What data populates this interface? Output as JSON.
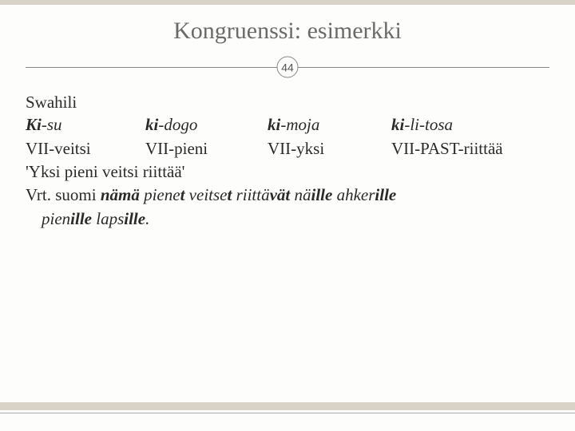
{
  "colors": {
    "background": "#fdfdfc",
    "title_text": "#6a6a6a",
    "body_text": "#2a2a2a",
    "rule": "#888",
    "accent_bar": "#d8d3c6"
  },
  "typography": {
    "title_fontsize_pt": 22,
    "body_fontsize_pt": 16,
    "font_family": "Georgia, serif"
  },
  "title": "Kongruenssi: esimerkki",
  "slide_number": "44",
  "language_label": "Swahili",
  "table": {
    "row1": {
      "c1": {
        "bold": "Ki",
        "plain": "-su"
      },
      "c2": {
        "bold": "ki",
        "plain": "-dogo"
      },
      "c3": {
        "bold": "ki",
        "plain": "-moja"
      },
      "c4": {
        "bold": "ki",
        "plain": "-li-tosa"
      }
    },
    "row2": {
      "c1": "VII-veitsi",
      "c2": "VII-pieni",
      "c3": "VII-yksi",
      "c4": "VII-PAST-riittää"
    }
  },
  "gloss": "'Yksi pieni veitsi riittää'",
  "compare": {
    "p1": "Vrt. suomi ",
    "p2": "nämä",
    "p3": " piene",
    "p4": "t",
    "p5": " veitse",
    "p6": "t",
    "p7": " riittä",
    "p8": "vät",
    "p9": " nä",
    "p10": "ille",
    "p11": " ahker",
    "p12": "ille",
    "p13": "pien",
    "p14": "ille",
    "p15": " laps",
    "p16": "ille",
    "p17": "."
  }
}
